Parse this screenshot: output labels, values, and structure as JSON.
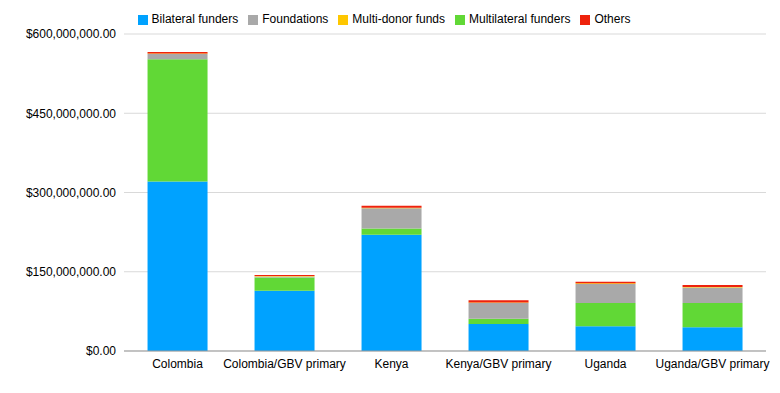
{
  "chart_data": {
    "type": "bar",
    "stacked": true,
    "grid": true,
    "legend": "top",
    "categories": [
      "Colombia",
      "Colombia/GBV primary",
      "Kenya",
      "Kenya/GBV primary",
      "Uganda",
      "Uganda/GBV primary"
    ],
    "series": [
      {
        "name": "Bilateral funders",
        "color": "#00a2ff",
        "values": [
          321000000,
          114000000,
          220000000,
          51000000,
          47000000,
          45000000
        ]
      },
      {
        "name": "Multilateral funders",
        "color": "#61d836",
        "values": [
          231000000,
          25000000,
          12000000,
          10000000,
          44000000,
          46000000
        ]
      },
      {
        "name": "Foundations",
        "color": "#a9a9a9",
        "values": [
          10000000,
          2000000,
          38000000,
          30000000,
          36000000,
          29000000
        ]
      },
      {
        "name": "Multi-donor funds",
        "color": "#fec700",
        "values": [
          1000000,
          1000000,
          1000000,
          1000000,
          1000000,
          1000000
        ]
      },
      {
        "name": "Others",
        "color": "#ee220c",
        "values": [
          3000000,
          2000000,
          4000000,
          4000000,
          3000000,
          4000000
        ]
      }
    ],
    "ylim": [
      0,
      600000000
    ],
    "yticks": [
      {
        "value": 0,
        "label": "$0.00"
      },
      {
        "value": 150000000,
        "label": "$150,000,000.00"
      },
      {
        "value": 300000000,
        "label": "$300,000,000.00"
      },
      {
        "value": 450000000,
        "label": "$450,000,000.00"
      },
      {
        "value": 600000000,
        "label": "$600,000,000.00"
      }
    ]
  }
}
